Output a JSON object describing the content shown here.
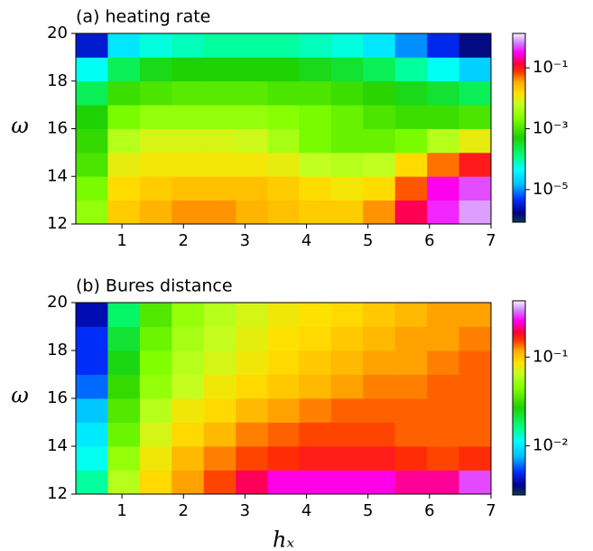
{
  "chart_data": [
    {
      "type": "heatmap",
      "title": "(a) heating rate",
      "ylabel": "ω",
      "xlim": [
        0.25,
        7.0
      ],
      "xticks": [
        1,
        2,
        3,
        4,
        5,
        6,
        7
      ],
      "ylim": [
        12,
        20
      ],
      "yticks": [
        12,
        14,
        16,
        18,
        20
      ],
      "x_edges": [
        0.25,
        0.77,
        1.29,
        1.81,
        2.33,
        2.85,
        3.37,
        3.88,
        4.4,
        4.92,
        5.44,
        5.96,
        6.48,
        7.0
      ],
      "y_edges": [
        12,
        13,
        14,
        15,
        16,
        17,
        18,
        19,
        20
      ],
      "z": [
        [
          0.003,
          0.02,
          0.03,
          0.04,
          0.04,
          0.03,
          0.025,
          0.02,
          0.02,
          0.04,
          0.15,
          0.4,
          0.8
        ],
        [
          0.002,
          0.015,
          0.02,
          0.025,
          0.025,
          0.025,
          0.02,
          0.015,
          0.012,
          0.015,
          0.06,
          0.3,
          0.5
        ],
        [
          0.001,
          0.01,
          0.012,
          0.012,
          0.012,
          0.012,
          0.01,
          0.006,
          0.005,
          0.006,
          0.015,
          0.05,
          0.1
        ],
        [
          0.0007,
          0.005,
          0.008,
          0.008,
          0.008,
          0.007,
          0.004,
          0.002,
          0.0015,
          0.0015,
          0.002,
          0.005,
          0.01
        ],
        [
          0.0005,
          0.002,
          0.003,
          0.003,
          0.003,
          0.003,
          0.0025,
          0.002,
          0.0015,
          0.001,
          0.0008,
          0.0008,
          0.001
        ],
        [
          0.0002,
          0.0008,
          0.001,
          0.0012,
          0.0012,
          0.0012,
          0.001,
          0.001,
          0.0008,
          0.0006,
          0.0004,
          0.0003,
          0.0002
        ],
        [
          5e-05,
          0.0002,
          0.0004,
          0.0005,
          0.0005,
          0.0005,
          0.0005,
          0.0004,
          0.0003,
          0.0002,
          0.0001,
          5e-05,
          2e-05
        ],
        [
          3e-06,
          3e-05,
          6e-05,
          8e-05,
          0.0001,
          0.0001,
          0.0001,
          8e-05,
          6e-05,
          3e-05,
          1e-05,
          4e-06,
          1.5e-06
        ]
      ],
      "colorbar": {
        "log": true,
        "lim": [
          8.5e-07,
          1.35
        ],
        "ticks": [
          {
            "value": 1e-05,
            "label": "10⁻⁵"
          },
          {
            "value": 0.001,
            "label": "10⁻³"
          },
          {
            "value": 0.1,
            "label": "10⁻¹"
          }
        ]
      }
    },
    {
      "type": "heatmap",
      "title": "(b) Bures distance",
      "ylabel": "ω",
      "xlabel": "hₓ",
      "xlim": [
        0.25,
        7.0
      ],
      "xticks": [
        1,
        2,
        3,
        4,
        5,
        6,
        7
      ],
      "ylim": [
        12,
        20
      ],
      "yticks": [
        12,
        14,
        16,
        18,
        20
      ],
      "x_edges": [
        0.25,
        0.77,
        1.29,
        1.81,
        2.33,
        2.85,
        3.37,
        3.88,
        4.4,
        4.92,
        5.44,
        5.96,
        6.48,
        7.0
      ],
      "y_edges": [
        12,
        13,
        14,
        15,
        16,
        17,
        18,
        19,
        20
      ],
      "z": [
        [
          0.015,
          0.06,
          0.09,
          0.12,
          0.15,
          0.2,
          0.25,
          0.25,
          0.25,
          0.25,
          0.22,
          0.22,
          0.3
        ],
        [
          0.012,
          0.05,
          0.08,
          0.11,
          0.13,
          0.15,
          0.16,
          0.17,
          0.17,
          0.17,
          0.16,
          0.15,
          0.16
        ],
        [
          0.01,
          0.04,
          0.07,
          0.09,
          0.11,
          0.13,
          0.14,
          0.15,
          0.15,
          0.15,
          0.14,
          0.14,
          0.14
        ],
        [
          0.008,
          0.035,
          0.06,
          0.08,
          0.09,
          0.11,
          0.12,
          0.13,
          0.14,
          0.14,
          0.14,
          0.14,
          0.14
        ],
        [
          0.006,
          0.03,
          0.05,
          0.065,
          0.08,
          0.09,
          0.1,
          0.11,
          0.12,
          0.13,
          0.13,
          0.14,
          0.14
        ],
        [
          0.005,
          0.025,
          0.045,
          0.06,
          0.07,
          0.08,
          0.09,
          0.1,
          0.11,
          0.12,
          0.12,
          0.13,
          0.14
        ],
        [
          0.005,
          0.022,
          0.04,
          0.055,
          0.065,
          0.075,
          0.085,
          0.09,
          0.1,
          0.11,
          0.12,
          0.12,
          0.13
        ],
        [
          0.004,
          0.018,
          0.035,
          0.05,
          0.06,
          0.07,
          0.08,
          0.085,
          0.09,
          0.1,
          0.11,
          0.12,
          0.12
        ]
      ],
      "colorbar": {
        "log": true,
        "lim": [
          0.0028,
          0.43
        ],
        "ticks": [
          {
            "value": 0.01,
            "label": "10⁻²"
          },
          {
            "value": 0.1,
            "label": "10⁻¹"
          }
        ]
      }
    }
  ],
  "colormap": [
    [
      0,
      "#0d3a4a"
    ],
    [
      0.05,
      "#000090"
    ],
    [
      0.12,
      "#0030ff"
    ],
    [
      0.2,
      "#00c0ff"
    ],
    [
      0.28,
      "#00ffff"
    ],
    [
      0.35,
      "#00ff80"
    ],
    [
      0.45,
      "#20d000"
    ],
    [
      0.55,
      "#80ff00"
    ],
    [
      0.62,
      "#c0ff20"
    ],
    [
      0.68,
      "#ffe000"
    ],
    [
      0.74,
      "#ffb000"
    ],
    [
      0.8,
      "#ff3000"
    ],
    [
      0.84,
      "#ff0040"
    ],
    [
      0.9,
      "#ff00ff"
    ],
    [
      0.95,
      "#d080ff"
    ],
    [
      1,
      "#fff0ff"
    ]
  ]
}
